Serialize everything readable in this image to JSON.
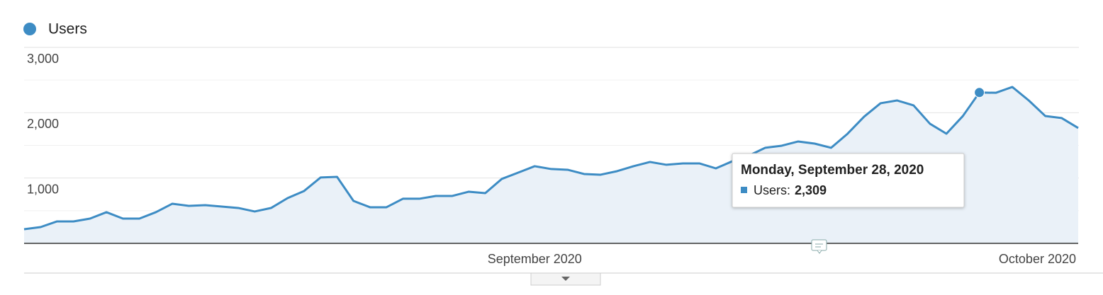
{
  "chart_data": {
    "type": "line",
    "categories": [
      null,
      null,
      null,
      null,
      null,
      null,
      null,
      null,
      null,
      null,
      null,
      null,
      null,
      null,
      null,
      null,
      null,
      null,
      null,
      null,
      null,
      null,
      null,
      null,
      null,
      null,
      null,
      null,
      null,
      null,
      null,
      "September 2020",
      null,
      null,
      null,
      null,
      null,
      null,
      null,
      null,
      null,
      null,
      null,
      null,
      null,
      null,
      null,
      null,
      null,
      null,
      null,
      null,
      null,
      null,
      null,
      null,
      null,
      null,
      null,
      null,
      null,
      "October 2020",
      null,
      null,
      null
    ],
    "series": [
      {
        "name": "Users",
        "color": "#3d8cc4",
        "values": [
          217,
          249,
          336,
          336,
          379,
          477,
          379,
          379,
          477,
          607,
          574,
          585,
          563,
          542,
          488,
          542,
          693,
          802,
          1008,
          1018,
          650,
          553,
          553,
          683,
          683,
          726,
          726,
          791,
          769,
          986,
          1083,
          1181,
          1138,
          1127,
          1062,
          1051,
          1105,
          1181,
          1246,
          1203,
          1224,
          1224,
          1148,
          1257,
          1343,
          1463,
          1495,
          1560,
          1527,
          1463,
          1679,
          1939,
          2145,
          2188,
          2113,
          1831,
          1679,
          1950,
          2309,
          2305,
          2394,
          2188,
          1950,
          1918,
          1766
        ],
        "value_labels": [
          null,
          null,
          null,
          null,
          null,
          null,
          null,
          null,
          null,
          null,
          null,
          null,
          null,
          null,
          null,
          null,
          null,
          null,
          null,
          null,
          null,
          null,
          null,
          null,
          null,
          null,
          null,
          null,
          null,
          null,
          null,
          null,
          null,
          null,
          null,
          null,
          null,
          null,
          null,
          null,
          null,
          null,
          null,
          null,
          null,
          null,
          null,
          null,
          null,
          null,
          null,
          null,
          null,
          null,
          null,
          null,
          null,
          null,
          "2,309",
          null,
          null,
          null,
          null,
          null,
          null
        ]
      }
    ],
    "ylim": [
      0,
      3000
    ],
    "yticks": [
      {
        "value": 1000,
        "label": "1,000"
      },
      {
        "value": 2000,
        "label": "2,000"
      },
      {
        "value": 3000,
        "label": "3,000"
      }
    ],
    "minor_yticks": [
      500,
      1500,
      2500
    ],
    "grid": true,
    "area_fill": "#eaf1f8",
    "tooltip": {
      "title": "Monday, September 28, 2020",
      "label": "Users:"
    }
  }
}
